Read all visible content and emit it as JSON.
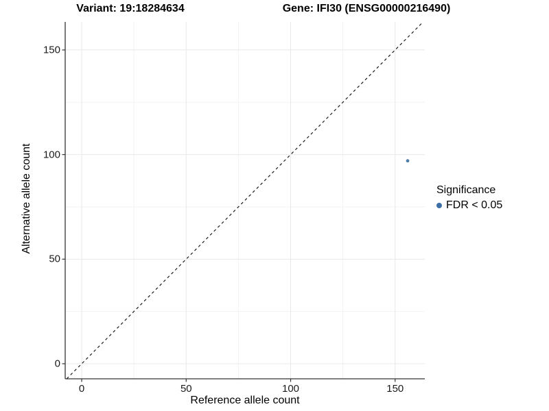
{
  "chart_data": {
    "type": "scatter",
    "titles": {
      "left": "Variant: 19:18284634",
      "right": "Gene: IFI30 (ENSG00000216490)"
    },
    "xlabel": "Reference allele count",
    "ylabel": "Alternative allele count",
    "x_ticks": [
      0,
      50,
      100,
      150
    ],
    "y_ticks": [
      0,
      50,
      100,
      150
    ],
    "x_minor_ticks": [
      25,
      75,
      125
    ],
    "y_minor_ticks": [
      25,
      75,
      125
    ],
    "xlim": [
      -7.9,
      164.2
    ],
    "ylim": [
      -7.2,
      163.4
    ],
    "grid": "major+minor",
    "points": [
      {
        "x": 156,
        "y": 97,
        "series": "FDR < 0.05"
      }
    ],
    "abline": {
      "slope": 1,
      "intercept": 0,
      "style": "dashed"
    },
    "legend": {
      "title": "Significance",
      "position": "right",
      "items": [
        {
          "label": "FDR < 0.05",
          "color": "#3C70A4"
        }
      ]
    },
    "colors": {
      "point": "#4C7CA8",
      "abline": "#1a1a1a",
      "axis_line": "#333333",
      "tick_mark": "#333333",
      "grid_major": "#E8E8E8",
      "grid_minor": "#F3F3F3",
      "background": "#FFFFFF"
    }
  }
}
